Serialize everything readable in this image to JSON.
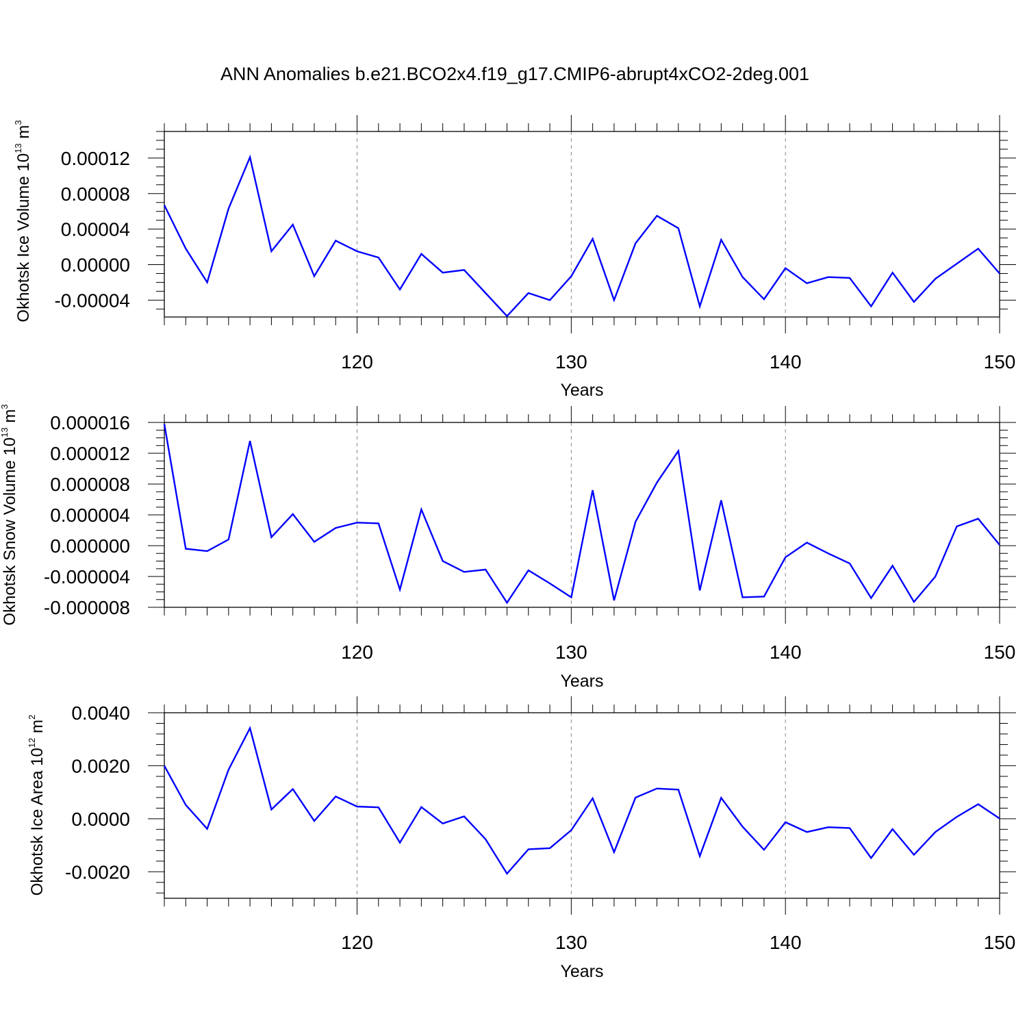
{
  "title": "ANN Anomalies b.e21.BCO2x4.f19_g17.CMIP6-abrupt4xCO2-2deg.001",
  "colors": {
    "line": "#0000ff",
    "axis": "#000000",
    "grid": "#888888"
  },
  "chart_data": [
    {
      "type": "line",
      "ylabel": {
        "text": "Okhotsk Ice Volume 10",
        "exp": "13",
        "unit": "m",
        "unit_exp": "3"
      },
      "xlabel": "Years",
      "xlim": [
        111,
        150
      ],
      "ylim": [
        -5.9e-05,
        0.00015
      ],
      "grid": "dashed vertical lines at x ticks",
      "xticks": [
        120,
        130,
        140,
        150
      ],
      "xtick_labels": [
        "120",
        "130",
        "140",
        "150"
      ],
      "yticks": [
        -4e-05,
        0,
        4e-05,
        8e-05,
        0.00012
      ],
      "ytick_labels": [
        "-0.00004",
        "0.00000",
        "0.00004",
        "0.00008",
        "0.00012"
      ],
      "yminor_step": 1e-05,
      "x": [
        111,
        112,
        113,
        114,
        115,
        116,
        117,
        118,
        119,
        120,
        121,
        122,
        123,
        124,
        125,
        126,
        127,
        128,
        129,
        130,
        131,
        132,
        133,
        134,
        135,
        136,
        137,
        138,
        139,
        140,
        141,
        142,
        143,
        144,
        145,
        146,
        147,
        148,
        149,
        150
      ],
      "values": [
        6.7e-05,
        1.8e-05,
        -2e-05,
        6.3e-05,
        0.000121,
        1.5e-05,
        4.5e-05,
        -1.3e-05,
        2.7e-05,
        1.5e-05,
        8e-06,
        -2.8e-05,
        1.2e-05,
        -9e-06,
        -6e-06,
        -3.2e-05,
        -5.8e-05,
        -3.2e-05,
        -4e-05,
        -1.3e-05,
        2.9e-05,
        -4e-05,
        2.4e-05,
        5.5e-05,
        4.1e-05,
        -4.7e-05,
        2.8e-05,
        -1.4e-05,
        -3.9e-05,
        -4e-06,
        -2.1e-05,
        -1.4e-05,
        -1.5e-05,
        -4.7e-05,
        -9e-06,
        -4.2e-05,
        -1.6e-05,
        1e-06,
        1.8e-05,
        -1e-05
      ]
    },
    {
      "type": "line",
      "ylabel": {
        "text": "Okhotsk Snow Volume 10",
        "exp": "13",
        "unit": "m",
        "unit_exp": "3"
      },
      "xlabel": "Years",
      "xlim": [
        111,
        150
      ],
      "ylim": [
        -8e-06,
        1.6e-05
      ],
      "grid": "dashed vertical lines at x ticks",
      "xticks": [
        120,
        130,
        140,
        150
      ],
      "xtick_labels": [
        "120",
        "130",
        "140",
        "150"
      ],
      "yticks": [
        -8e-06,
        -4e-06,
        0,
        4e-06,
        8e-06,
        1.2e-05,
        1.6e-05
      ],
      "ytick_labels": [
        "-0.000008",
        "-0.000004",
        "0.000000",
        "0.000004",
        "0.000008",
        "0.000012",
        "0.000016"
      ],
      "yminor_step": 1e-06,
      "x": [
        111,
        112,
        113,
        114,
        115,
        116,
        117,
        118,
        119,
        120,
        121,
        122,
        123,
        124,
        125,
        126,
        127,
        128,
        129,
        130,
        131,
        132,
        133,
        134,
        135,
        136,
        137,
        138,
        139,
        140,
        141,
        142,
        143,
        144,
        145,
        146,
        147,
        148,
        149,
        150
      ],
      "values": [
        1.58e-05,
        -4e-07,
        -7e-07,
        8e-07,
        1.36e-05,
        1.1e-06,
        4.1e-06,
        5e-07,
        2.3e-06,
        3e-06,
        2.9e-06,
        -5.7e-06,
        4.7e-06,
        -2e-06,
        -3.4e-06,
        -3.1e-06,
        -7.4e-06,
        -3.2e-06,
        -4.9e-06,
        -6.7e-06,
        7.2e-06,
        -7.1e-06,
        3.1e-06,
        8.2e-06,
        1.23e-05,
        -5.8e-06,
        5.9e-06,
        -6.7e-06,
        -6.6e-06,
        -1.5e-06,
        4e-07,
        -1e-06,
        -2.3e-06,
        -6.8e-06,
        -2.6e-06,
        -7.3e-06,
        -4e-06,
        2.5e-06,
        3.5e-06,
        1e-07
      ]
    },
    {
      "type": "line",
      "ylabel": {
        "text": "Okhotsk Ice Area 10",
        "exp": "12",
        "unit": "m",
        "unit_exp": "2"
      },
      "xlabel": "Years",
      "xlim": [
        111,
        150
      ],
      "ylim": [
        -0.003,
        0.004
      ],
      "grid": "dashed vertical lines at x ticks",
      "xticks": [
        120,
        130,
        140,
        150
      ],
      "xtick_labels": [
        "120",
        "130",
        "140",
        "150"
      ],
      "yticks": [
        -0.002,
        0,
        0.002,
        0.004
      ],
      "ytick_labels": [
        "-0.0020",
        "0.0000",
        "0.0020",
        "0.0040"
      ],
      "yminor_step": 0.0004,
      "x": [
        111,
        112,
        113,
        114,
        115,
        116,
        117,
        118,
        119,
        120,
        121,
        122,
        123,
        124,
        125,
        126,
        127,
        128,
        129,
        130,
        131,
        132,
        133,
        134,
        135,
        136,
        137,
        138,
        139,
        140,
        141,
        142,
        143,
        144,
        145,
        146,
        147,
        148,
        149,
        150
      ],
      "values": [
        0.002,
        0.00052,
        -0.00038,
        0.00185,
        0.00342,
        0.00035,
        0.00112,
        -8e-05,
        0.00084,
        0.00046,
        0.00043,
        -0.0009,
        0.00044,
        -0.00018,
        9e-05,
        -0.00077,
        -0.00207,
        -0.00115,
        -0.00111,
        -0.00043,
        0.00077,
        -0.00126,
        0.0008,
        0.00114,
        0.0011,
        -0.00141,
        0.00079,
        -0.0003,
        -0.00117,
        -0.00013,
        -0.0005,
        -0.00032,
        -0.00035,
        -0.00148,
        -0.00039,
        -0.00136,
        -0.0005,
        7e-05,
        0.00055,
        1e-05
      ]
    }
  ]
}
